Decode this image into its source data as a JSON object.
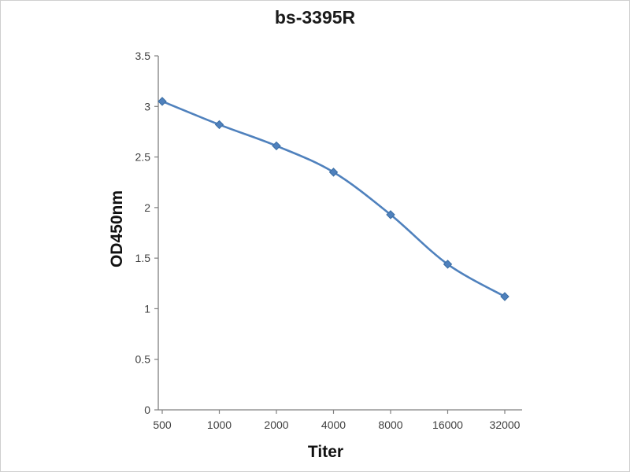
{
  "chart_data": {
    "type": "line",
    "title": "bs-3395R",
    "xlabel": "Titer",
    "ylabel": "OD450nm",
    "categories": [
      "500",
      "1000",
      "2000",
      "4000",
      "8000",
      "16000",
      "32000"
    ],
    "series": [
      {
        "name": "bs-3395R",
        "values": [
          3.05,
          2.82,
          2.61,
          2.35,
          1.93,
          1.44,
          1.12
        ]
      }
    ],
    "ylim": [
      0,
      3.5
    ],
    "yticks": [
      0,
      0.5,
      1,
      1.5,
      2,
      2.5,
      3,
      3.5
    ],
    "grid": false,
    "legend_position": "none",
    "line_color": "#4f81bd",
    "marker": "diamond",
    "axis_color": "#808080",
    "tick_label_color": "#3f3f3f"
  }
}
